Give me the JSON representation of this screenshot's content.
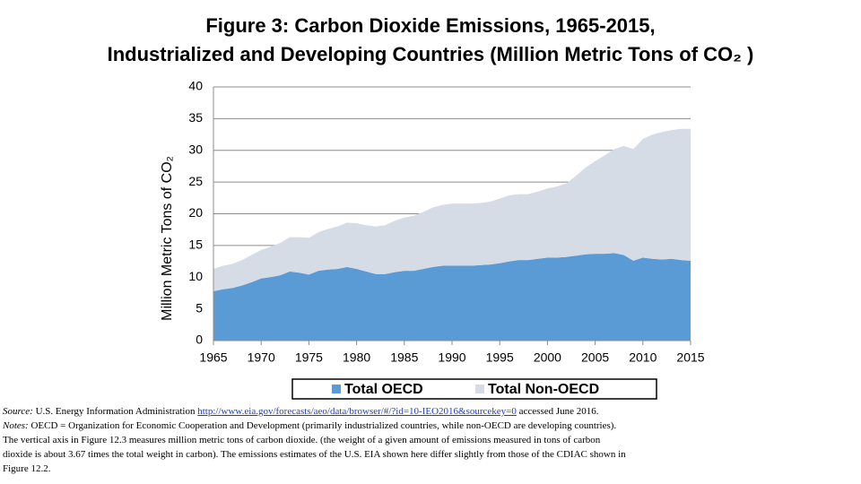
{
  "chart_data": {
    "type": "stacked-area",
    "title": [
      "Figure 3: Carbon Dioxide Emissions, 1965-2015,",
      "Industrialized and Developing Countries (Million Metric Tons of CO₂ )"
    ],
    "y_label": "Million Metric Tons of CO₂",
    "x": [
      1965,
      1966,
      1967,
      1968,
      1969,
      1970,
      1971,
      1972,
      1973,
      1974,
      1975,
      1976,
      1977,
      1978,
      1979,
      1980,
      1981,
      1982,
      1983,
      1984,
      1985,
      1986,
      1987,
      1988,
      1989,
      1990,
      1991,
      1992,
      1993,
      1994,
      1995,
      1996,
      1997,
      1998,
      1999,
      2000,
      2001,
      2002,
      2003,
      2004,
      2005,
      2006,
      2007,
      2008,
      2009,
      2010,
      2011,
      2012,
      2013,
      2014,
      2015
    ],
    "series": [
      {
        "name": "Total OECD",
        "color": "#5b9bd5",
        "values": [
          7.8,
          8.1,
          8.3,
          8.7,
          9.2,
          9.8,
          10.0,
          10.3,
          10.9,
          10.7,
          10.4,
          11.0,
          11.2,
          11.3,
          11.6,
          11.3,
          10.9,
          10.5,
          10.5,
          10.8,
          11.0,
          11.0,
          11.3,
          11.6,
          11.8,
          11.8,
          11.8,
          11.8,
          11.9,
          12.0,
          12.2,
          12.5,
          12.7,
          12.7,
          12.9,
          13.1,
          13.1,
          13.2,
          13.4,
          13.6,
          13.7,
          13.7,
          13.8,
          13.5,
          12.6,
          13.1,
          12.9,
          12.8,
          12.9,
          12.7,
          12.6
        ]
      },
      {
        "name": "Total Non-OECD",
        "color": "#d6dce5",
        "values": [
          3.5,
          3.7,
          3.8,
          4.0,
          4.3,
          4.5,
          4.8,
          5.1,
          5.4,
          5.6,
          5.8,
          6.1,
          6.4,
          6.7,
          7.0,
          7.2,
          7.3,
          7.5,
          7.7,
          8.1,
          8.4,
          8.7,
          9.0,
          9.4,
          9.6,
          9.8,
          9.8,
          9.8,
          9.8,
          9.9,
          10.2,
          10.4,
          10.4,
          10.4,
          10.6,
          10.9,
          11.2,
          11.6,
          12.6,
          13.7,
          14.6,
          15.5,
          16.4,
          17.2,
          17.6,
          18.7,
          19.6,
          20.1,
          20.3,
          20.7,
          20.8
        ]
      }
    ],
    "xlim": [
      1965,
      2015
    ],
    "xticks": [
      1965,
      1970,
      1975,
      1980,
      1985,
      1990,
      1995,
      2000,
      2005,
      2010,
      2015
    ],
    "ylim": [
      0,
      40
    ],
    "yticks": [
      0,
      5,
      10,
      15,
      20,
      25,
      30,
      35,
      40
    ],
    "grid": true,
    "legend": "bottom"
  },
  "footnote": {
    "source_label": "Source:",
    "source_text": "U.S. Energy Information Administration",
    "url": "http://www.eia.gov/forecasts/aeo/data/browser/#/?id=10-IEO2016&sourcekey=0",
    "source_tail": "accessed June 2016.",
    "notes_label": "Notes:",
    "notes_text": "OECD = Organization for Economic Cooperation and Development (primarily industrialized countries, while non-OECD are developing countries). The vertical axis in Figure 12.3 measures million metric tons of carbon dioxide. (the weight of a given amount of emissions measured in tons of carbon dioxide is about 3.67 times the total weight in carbon).  The emissions estimates of the U.S. EIA shown here differ slightly from those of the CDIAC shown in Figure 12.2."
  }
}
